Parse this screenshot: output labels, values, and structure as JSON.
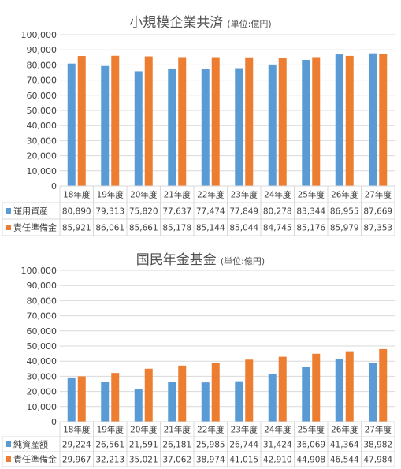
{
  "colors": {
    "blue": "#5b9bd5",
    "orange": "#ed7d31",
    "grid": "#d9d9d9",
    "text": "#404040"
  },
  "chart_data": [
    {
      "type": "bar",
      "title": "小規模企業共済",
      "unit_label": "(単位:億円)",
      "categories": [
        "18年度",
        "19年度",
        "20年度",
        "21年度",
        "22年度",
        "23年度",
        "24年度",
        "25年度",
        "26年度",
        "27年度"
      ],
      "yticks": [
        "0",
        "10,000",
        "20,000",
        "30,000",
        "40,000",
        "50,000",
        "60,000",
        "70,000",
        "80,000",
        "90,000",
        "100,000"
      ],
      "ylim": [
        0,
        100000
      ],
      "legend": "table",
      "grid": true,
      "series": [
        {
          "name": "運用資産",
          "color": "#5b9bd5",
          "values": [
            80890,
            79313,
            75820,
            77637,
            77474,
            77849,
            80278,
            83344,
            86955,
            87669
          ],
          "labels": [
            "80,890",
            "79,313",
            "75,820",
            "77,637",
            "77,474",
            "77,849",
            "80,278",
            "83,344",
            "86,955",
            "87,669"
          ]
        },
        {
          "name": "責任準備金",
          "color": "#ed7d31",
          "values": [
            85921,
            86061,
            85661,
            85178,
            85144,
            85044,
            84745,
            85176,
            85979,
            87353
          ],
          "labels": [
            "85,921",
            "86,061",
            "85,661",
            "85,178",
            "85,144",
            "85,044",
            "84,745",
            "85,176",
            "85,979",
            "87,353"
          ]
        }
      ]
    },
    {
      "type": "bar",
      "title": "国民年金基金",
      "unit_label": "(単位:億円)",
      "categories": [
        "18年度",
        "19年度",
        "20年度",
        "21年度",
        "22年度",
        "23年度",
        "24年度",
        "25年度",
        "26年度",
        "27年度"
      ],
      "yticks": [
        "0",
        "10,000",
        "20,000",
        "30,000",
        "40,000",
        "50,000",
        "60,000",
        "70,000",
        "80,000",
        "90,000",
        "100,000"
      ],
      "ylim": [
        0,
        100000
      ],
      "legend": "table",
      "grid": true,
      "series": [
        {
          "name": "純資産額",
          "color": "#5b9bd5",
          "values": [
            29224,
            26561,
            21591,
            26181,
            25985,
            26744,
            31424,
            36069,
            41364,
            38982
          ],
          "labels": [
            "29,224",
            "26,561",
            "21,591",
            "26,181",
            "25,985",
            "26,744",
            "31,424",
            "36,069",
            "41,364",
            "38,982"
          ]
        },
        {
          "name": "責任準備金",
          "color": "#ed7d31",
          "values": [
            29967,
            32213,
            35021,
            37062,
            38974,
            41015,
            42910,
            44908,
            46544,
            47984
          ],
          "labels": [
            "29,967",
            "32,213",
            "35,021",
            "37,062",
            "38,974",
            "41,015",
            "42,910",
            "44,908",
            "46,544",
            "47,984"
          ]
        }
      ]
    }
  ]
}
